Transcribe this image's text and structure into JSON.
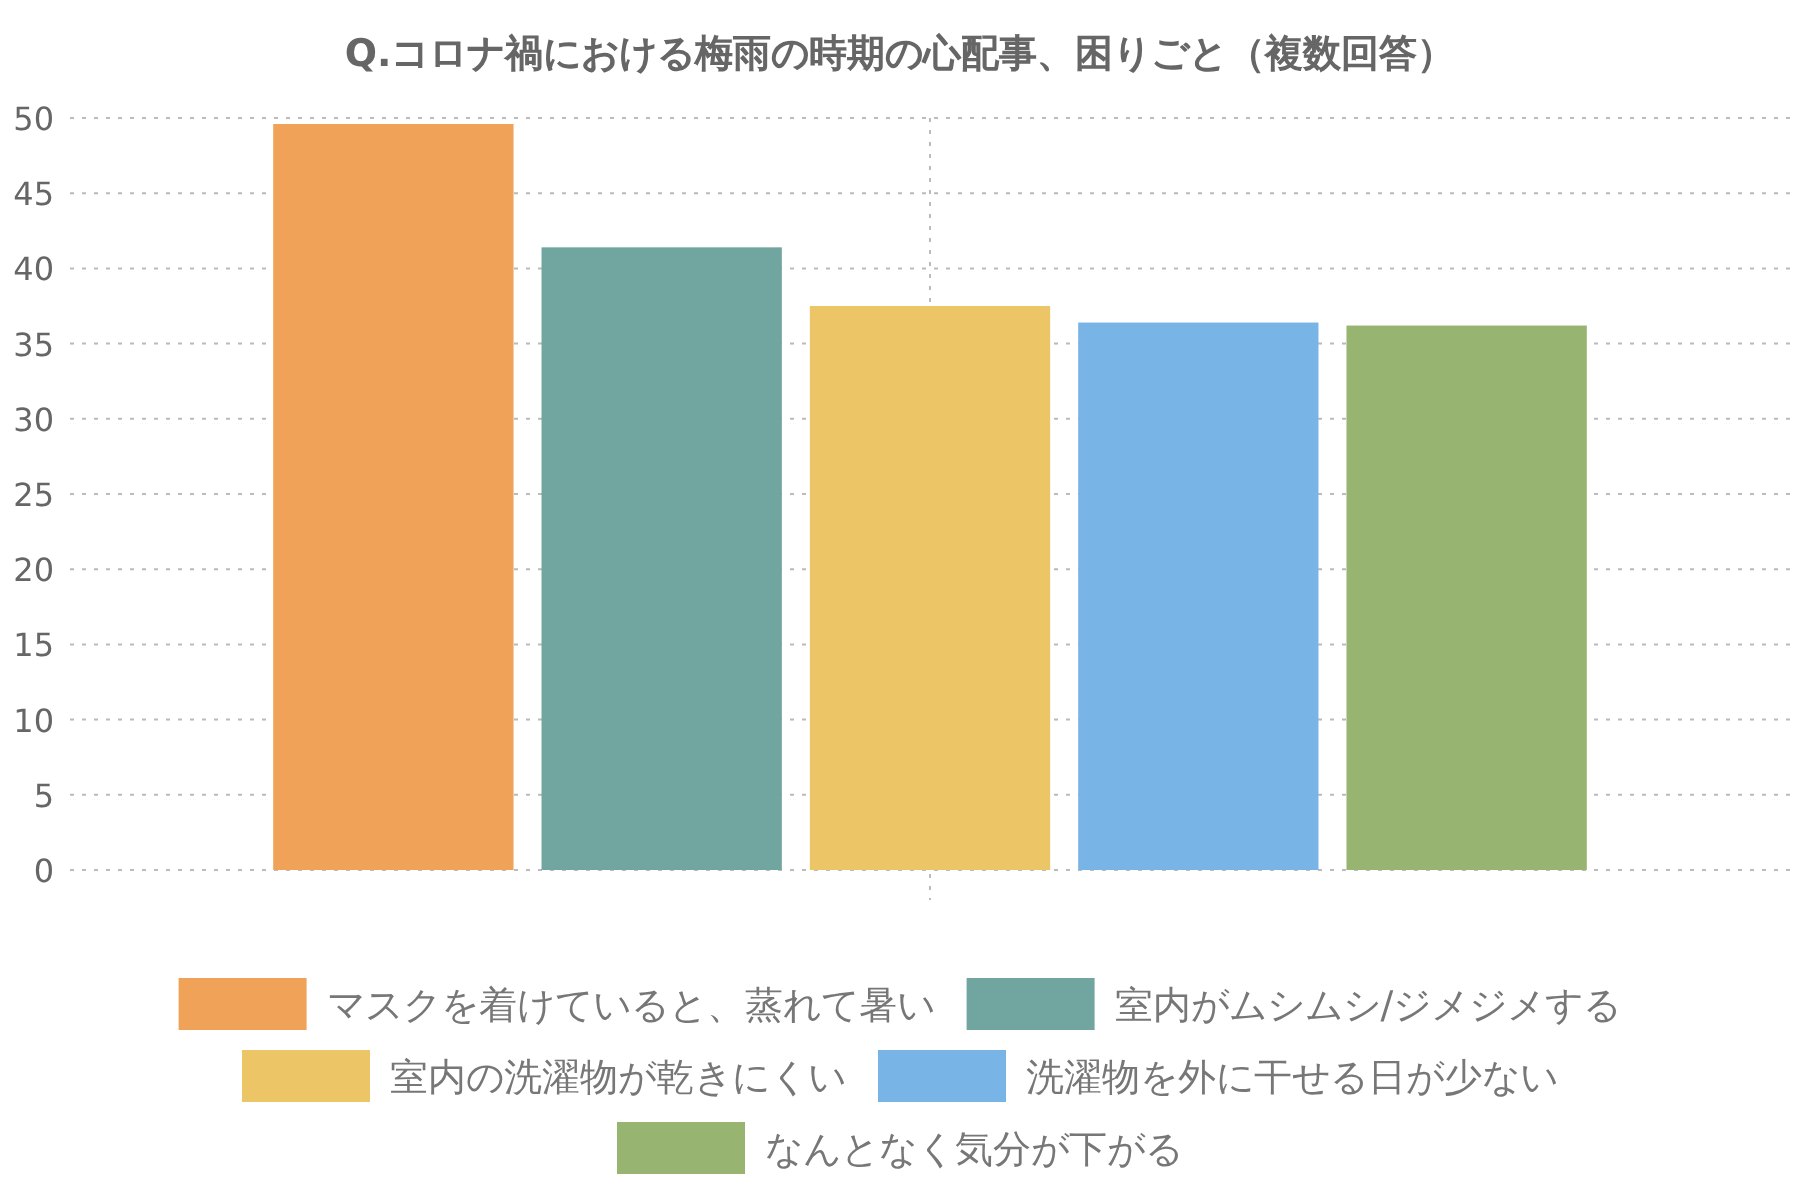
{
  "chart_data": {
    "type": "bar",
    "title": "Q.コロナ禍における梅雨の時期の心配事、困りごと（複数回答）",
    "categories": [
      null
    ],
    "series": [
      {
        "name": "マスクを着けていると、蒸れて暑い",
        "color": "#f0a258",
        "values": [
          49.6
        ]
      },
      {
        "name": "室内がムシムシ/ジメジメする",
        "color": "#71a6a0",
        "values": [
          41.4
        ]
      },
      {
        "name": "室内の洗濯物が乾きにくい",
        "color": "#ecc666",
        "values": [
          37.5
        ]
      },
      {
        "name": "洗濯物を外に干せる日が少ない",
        "color": "#78b5e6",
        "values": [
          36.4
        ]
      },
      {
        "name": "なんとなく気分が下がる",
        "color": "#97b470",
        "values": [
          36.2
        ]
      }
    ],
    "ylim": [
      0,
      50
    ],
    "yticks": [
      0,
      5,
      10,
      15,
      20,
      25,
      30,
      35,
      40,
      45,
      50
    ],
    "grid": true,
    "legend": "bottom"
  }
}
